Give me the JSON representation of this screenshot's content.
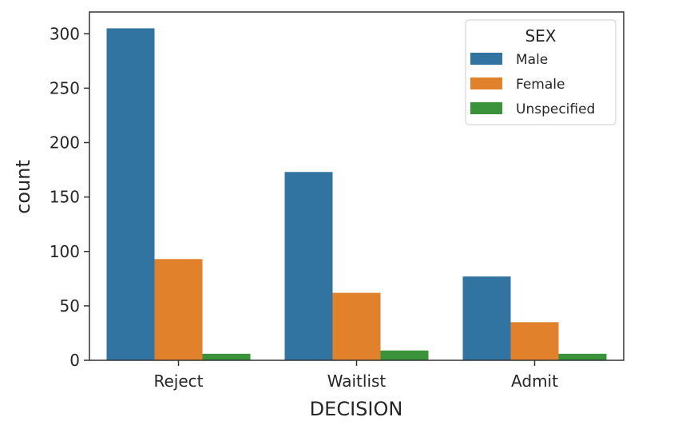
{
  "chart_data": {
    "type": "bar",
    "title": "",
    "xlabel": "DECISION",
    "ylabel": "count",
    "categories": [
      "Reject",
      "Waitlist",
      "Admit"
    ],
    "series": [
      {
        "name": "Male",
        "values": [
          305,
          173,
          77
        ],
        "color": "#3274a1"
      },
      {
        "name": "Female",
        "values": [
          93,
          62,
          35
        ],
        "color": "#e1812c"
      },
      {
        "name": "Unspecified",
        "values": [
          6,
          9,
          6
        ],
        "color": "#3a923a"
      }
    ],
    "ylim": [
      0,
      320
    ],
    "yticks": [
      0,
      50,
      100,
      150,
      200,
      250,
      300
    ],
    "legend": {
      "title": "SEX",
      "placement": "top-right"
    },
    "grid": false
  }
}
